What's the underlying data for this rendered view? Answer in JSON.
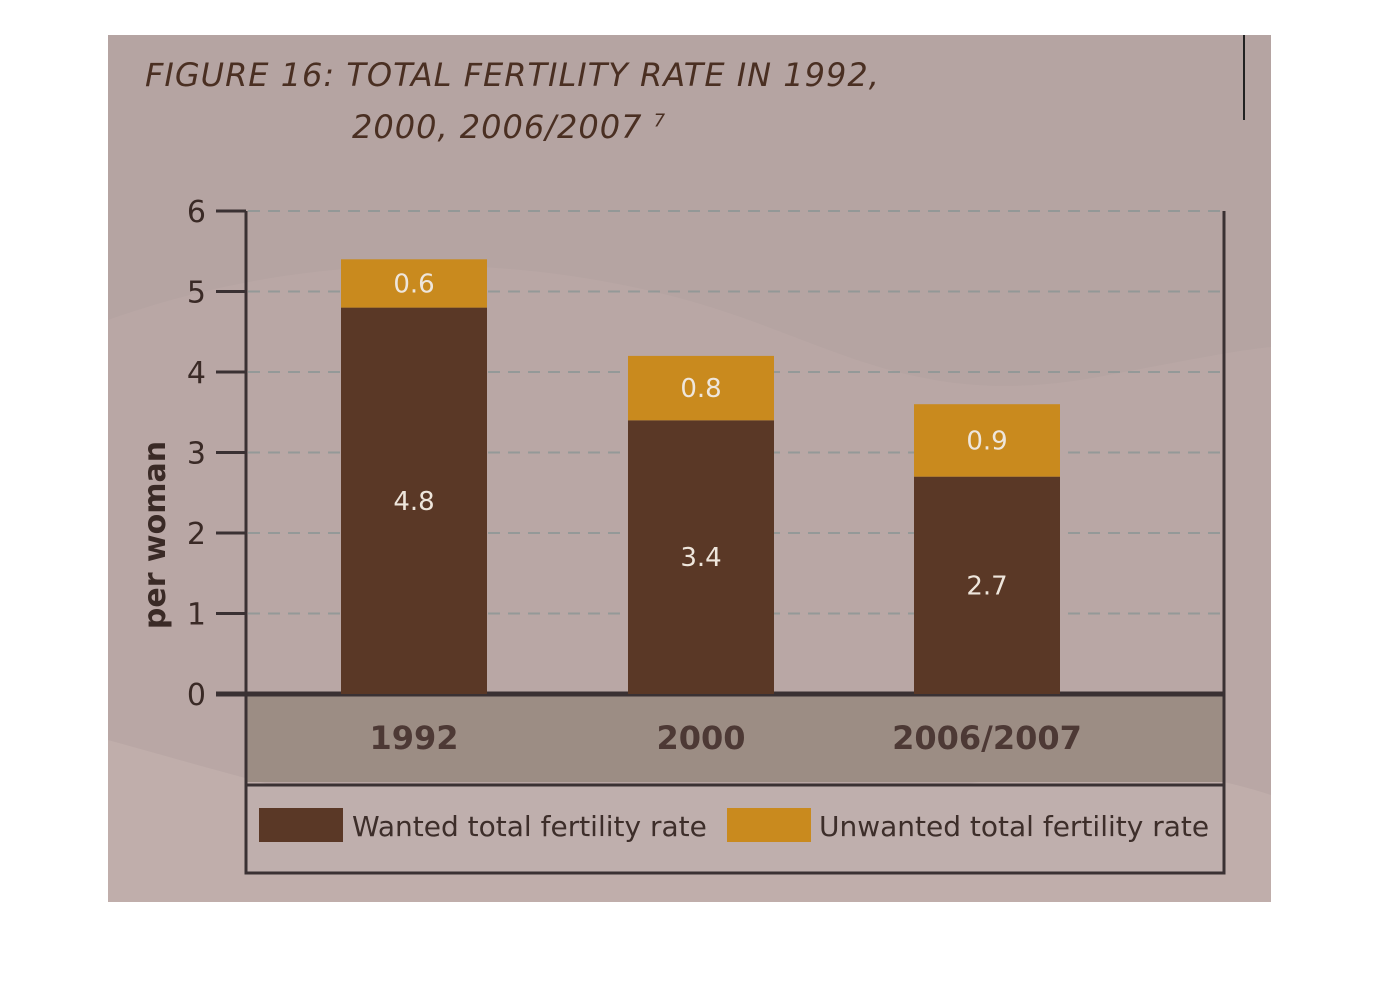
{
  "figure": {
    "title_line_1": "FIGURE 16: TOTAL FERTILITY RATE IN 1992,",
    "title_line_2": "2000, 2006/2007",
    "title_footnote": "7"
  },
  "colors": {
    "wanted": "#5a3826",
    "unwanted": "#c98a1e",
    "background": "#b5a4a2",
    "category_band": "#9c8d84"
  },
  "chart_data": {
    "type": "bar",
    "stacked": true,
    "categories": [
      "1992",
      "2000",
      "2006/2007"
    ],
    "series": [
      {
        "name": "Wanted total fertility rate",
        "values": [
          4.8,
          3.4,
          2.7
        ],
        "color": "#5a3826"
      },
      {
        "name": "Unwanted total fertility rate",
        "values": [
          0.6,
          0.8,
          0.9
        ],
        "color": "#c98a1e"
      }
    ],
    "data_labels": {
      "wanted": [
        "4.8",
        "3.4",
        "2.7"
      ],
      "unwanted": [
        "0.6",
        "0.8",
        "0.9"
      ]
    },
    "ylabel": "per woman",
    "xlabel": "",
    "ylim": [
      0,
      6
    ],
    "yticks": [
      "0",
      "1",
      "2",
      "3",
      "4",
      "5",
      "6"
    ],
    "grid": true,
    "legend_position": "bottom"
  }
}
